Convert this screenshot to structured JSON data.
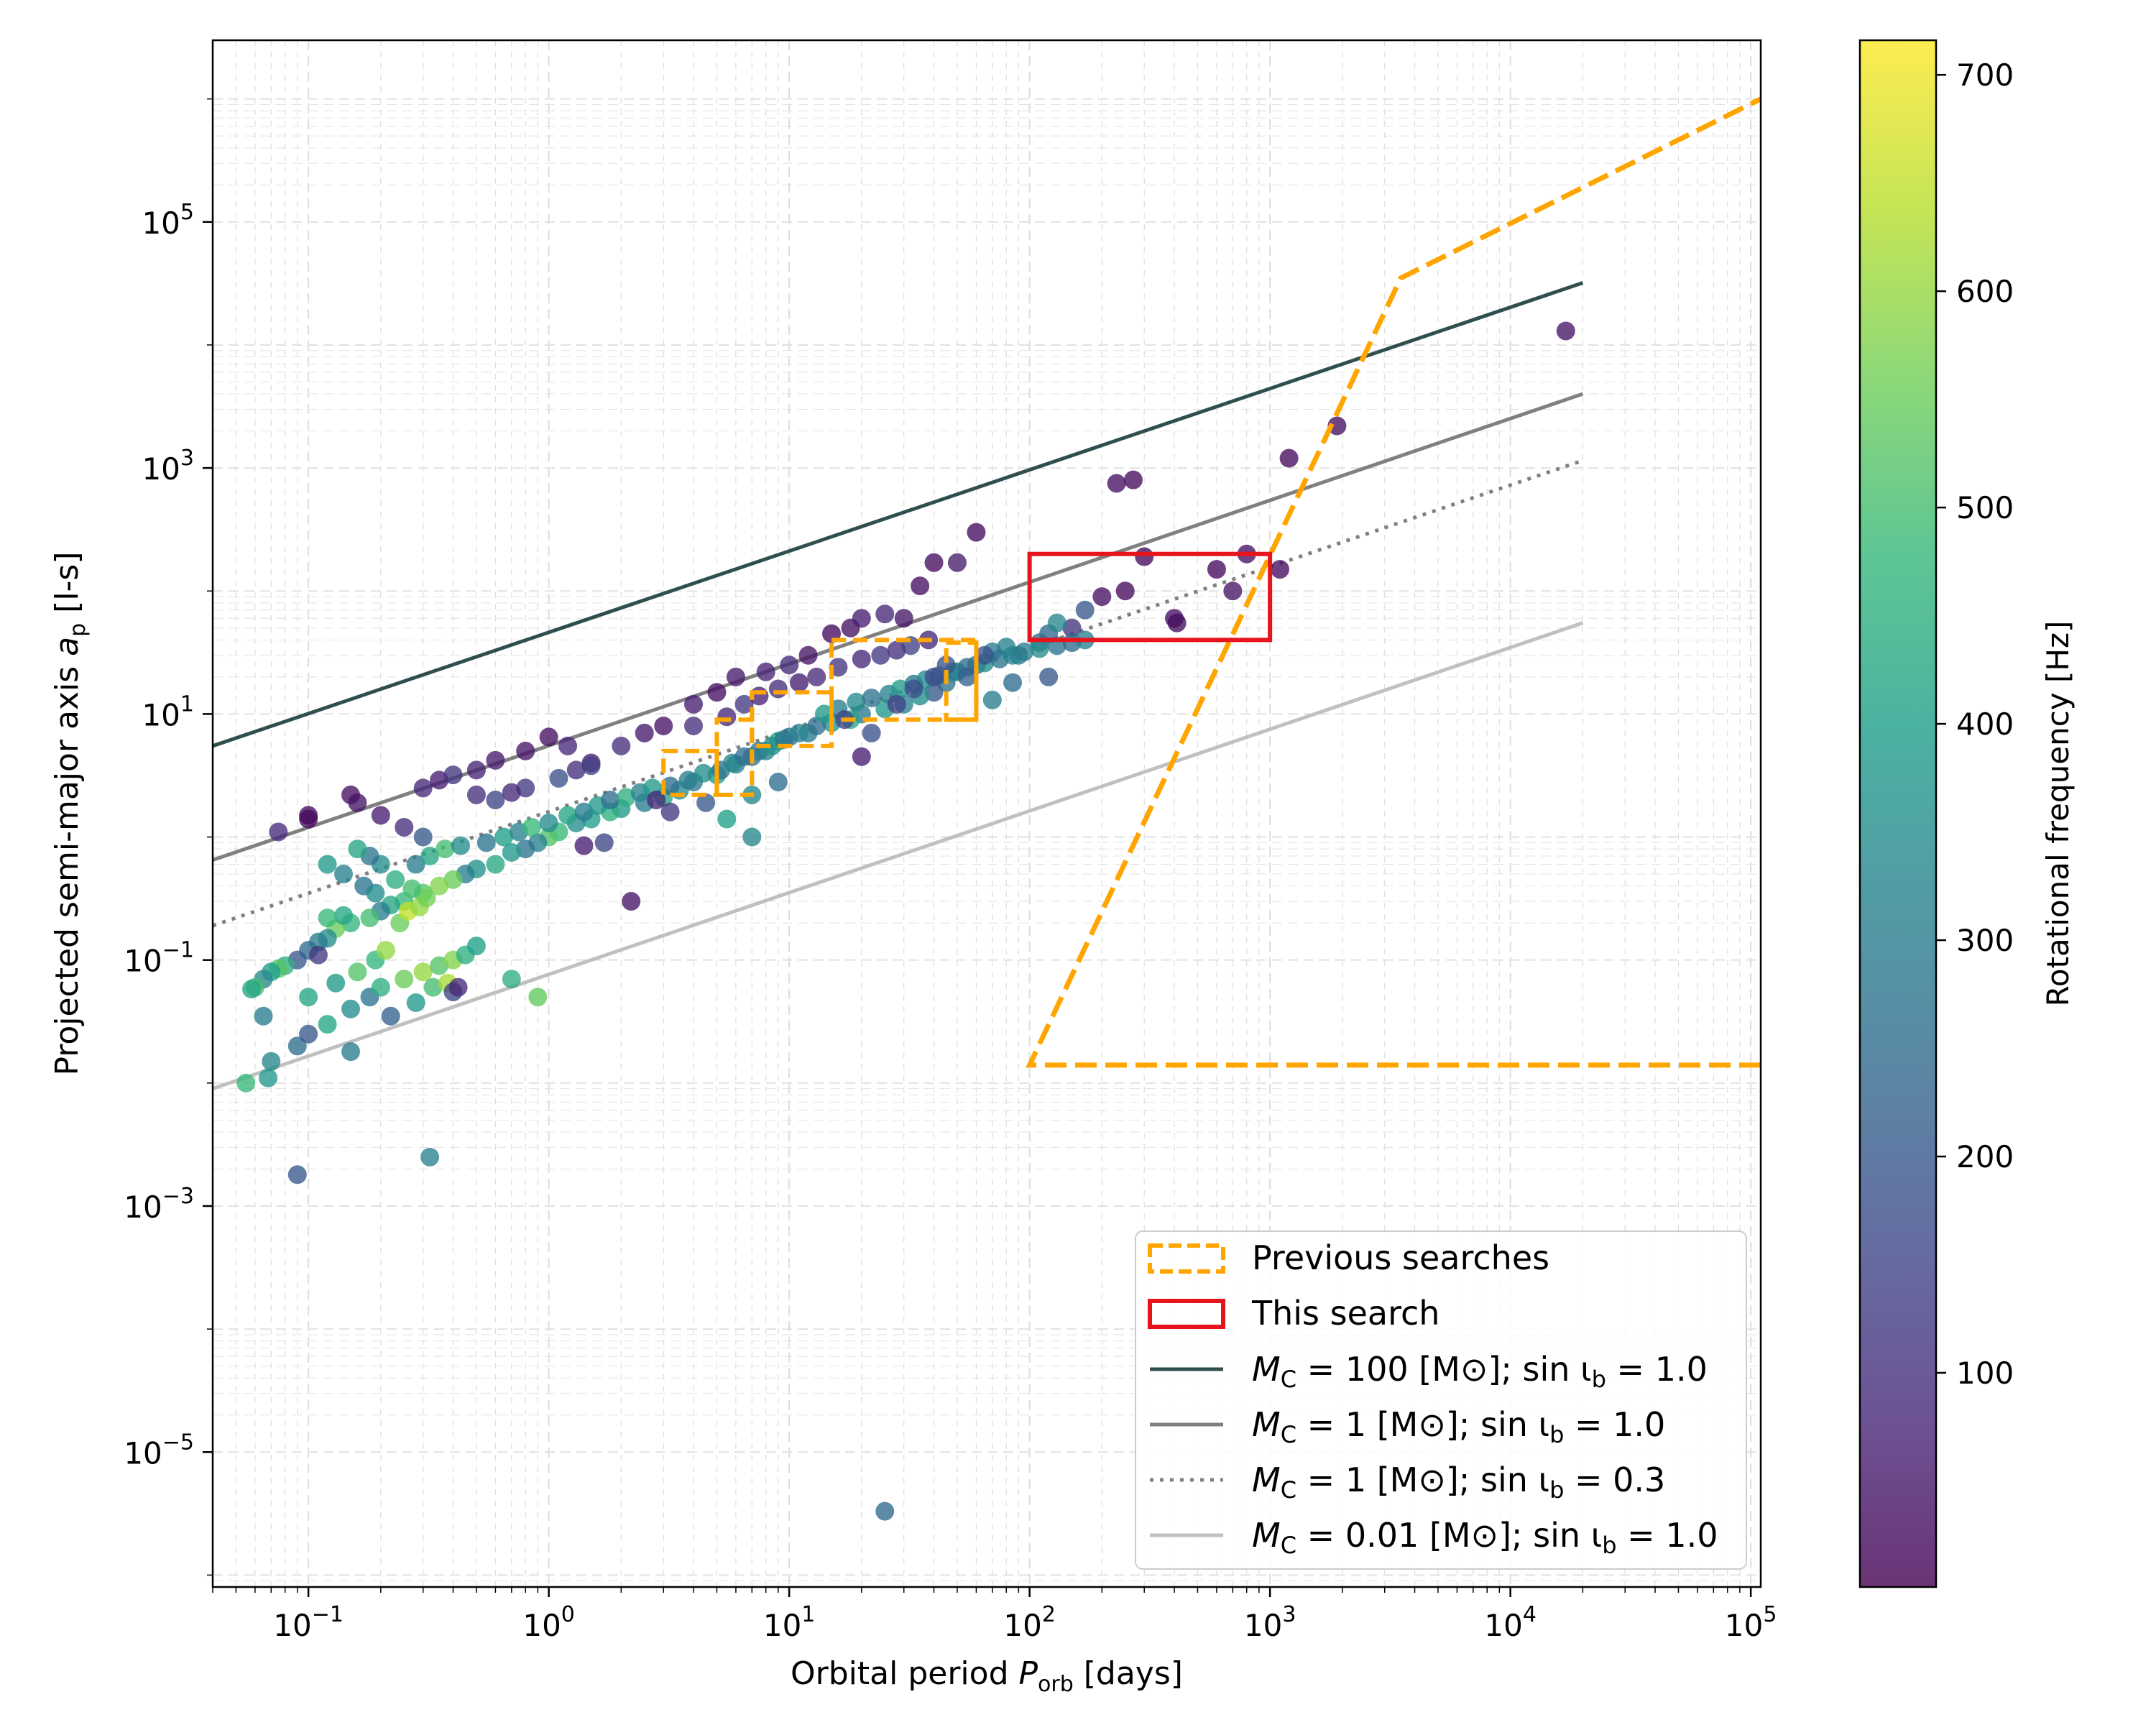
{
  "chart_data": {
    "type": "scatter",
    "x_scale": "log",
    "y_scale": "log",
    "xlabel_main": "Orbital period ",
    "xlabel_symbol": "P",
    "xlabel_sub": "orb",
    "xlabel_units": " [days]",
    "ylabel_main": "Projected semi-major axis ",
    "ylabel_symbol": "a",
    "ylabel_sub": "p",
    "ylabel_units": " [l-s]",
    "xlim": [
      0.04,
      110000
    ],
    "ylim": [
      8e-07,
      3000000
    ],
    "x_ticks": [
      {
        "base": "10",
        "exp": "−1",
        "value": 0.1
      },
      {
        "base": "10",
        "exp": "0",
        "value": 1
      },
      {
        "base": "10",
        "exp": "1",
        "value": 10
      },
      {
        "base": "10",
        "exp": "2",
        "value": 100
      },
      {
        "base": "10",
        "exp": "3",
        "value": 1000
      },
      {
        "base": "10",
        "exp": "4",
        "value": 10000
      },
      {
        "base": "10",
        "exp": "5",
        "value": 100000
      }
    ],
    "y_ticks": [
      {
        "base": "10",
        "exp": "−5",
        "value": 1e-05
      },
      {
        "base": "10",
        "exp": "−3",
        "value": 0.001
      },
      {
        "base": "10",
        "exp": "−1",
        "value": 0.1
      },
      {
        "base": "10",
        "exp": "1",
        "value": 10
      },
      {
        "base": "10",
        "exp": "3",
        "value": 1000
      },
      {
        "base": "10",
        "exp": "5",
        "value": 100000
      }
    ],
    "grid": true,
    "legend_position": "lower-right",
    "colorbar": {
      "label": "Rotational frequency [Hz]",
      "range": [
        1,
        716
      ],
      "ticks": [
        "100",
        "200",
        "300",
        "400",
        "500",
        "600",
        "700"
      ],
      "tick_values": [
        100,
        200,
        300,
        400,
        500,
        600,
        700
      ],
      "colormap": [
        "#440154",
        "#482878",
        "#3e4989",
        "#31688e",
        "#26828e",
        "#1f9e89",
        "#35b779",
        "#6ece58",
        "#b5de2b",
        "#fde725"
      ]
    },
    "lines": [
      {
        "name": "mc100",
        "x": [
          0.04,
          20000
        ],
        "y": [
          5.5,
          32000
        ],
        "color": "#2f4f4f",
        "dash": "solid"
      },
      {
        "name": "mc1",
        "x": [
          0.04,
          20000
        ],
        "y": [
          0.65,
          4000
        ],
        "color": "#808080",
        "dash": "solid"
      },
      {
        "name": "mc1-sin03",
        "x": [
          0.04,
          20000
        ],
        "y": [
          0.19,
          1150
        ],
        "color": "#808080",
        "dash": "dotted"
      },
      {
        "name": "mc001",
        "x": [
          0.04,
          20000
        ],
        "y": [
          0.009,
          55
        ],
        "color": "#c0c0c0",
        "dash": "solid"
      }
    ],
    "previous_searches": [
      {
        "x": [
          3,
          5
        ],
        "y": [
          2.2,
          5
        ]
      },
      {
        "x": [
          5,
          7
        ],
        "y": [
          2.2,
          9
        ]
      },
      {
        "x": [
          7,
          15
        ],
        "y": [
          5.5,
          15
        ]
      },
      {
        "x": [
          15,
          60
        ],
        "y": [
          9,
          40
        ]
      },
      {
        "x": [
          45,
          60
        ],
        "y": [
          9,
          38
        ]
      }
    ],
    "previous_searches_boundary": {
      "x": [
        110000,
        100,
        3500,
        110000
      ],
      "y": [
        0.014,
        0.014,
        35000,
        1000000
      ]
    },
    "this_search": {
      "x": [
        100,
        1000
      ],
      "y": [
        40,
        200
      ]
    },
    "legend": [
      {
        "label": "Previous searches",
        "kind": "box-dashed"
      },
      {
        "label": "This search",
        "kind": "box-solid"
      },
      {
        "label_prefix": "M",
        "label_sub": "C",
        "label_mid": " = 100 [M",
        "label_sym": "⊙",
        "label_end": "]; sin ι",
        "label_sub2": "b",
        "label_tail": " = 1.0",
        "kind": "line",
        "color": "#2f4f4f",
        "dash": "solid"
      },
      {
        "label_prefix": "M",
        "label_sub": "C",
        "label_mid": " = 1 [M",
        "label_sym": "⊙",
        "label_end": "]; sin ι",
        "label_sub2": "b",
        "label_tail": " = 1.0",
        "kind": "line",
        "color": "#808080",
        "dash": "solid"
      },
      {
        "label_prefix": "M",
        "label_sub": "C",
        "label_mid": " = 1 [M",
        "label_sym": "⊙",
        "label_end": "]; sin ι",
        "label_sub2": "b",
        "label_tail": " = 0.3",
        "kind": "line",
        "color": "#808080",
        "dash": "dotted"
      },
      {
        "label_prefix": "M",
        "label_sub": "C",
        "label_mid": " = 0.01 [M",
        "label_sym": "⊙",
        "label_end": "]; sin ι",
        "label_sub2": "b",
        "label_tail": " = 1.0",
        "kind": "line",
        "color": "#c0c0c0",
        "dash": "solid"
      }
    ],
    "points": [
      [
        0.075,
        1.1,
        90
      ],
      [
        0.1,
        1.4,
        20
      ],
      [
        0.1,
        1.5,
        15
      ],
      [
        0.15,
        2.2,
        30
      ],
      [
        0.16,
        1.9,
        40
      ],
      [
        0.2,
        1.5,
        60
      ],
      [
        0.25,
        1.2,
        100
      ],
      [
        0.3,
        2.5,
        80
      ],
      [
        0.35,
        2.9,
        60
      ],
      [
        0.4,
        3.2,
        110
      ],
      [
        0.5,
        3.5,
        70
      ],
      [
        0.6,
        4.2,
        50
      ],
      [
        0.8,
        5.0,
        40
      ],
      [
        1.0,
        6.5,
        30
      ],
      [
        1.2,
        5.5,
        80
      ],
      [
        1.5,
        4.0,
        60
      ],
      [
        2.0,
        5.5,
        100
      ],
      [
        2.5,
        7.0,
        50
      ],
      [
        3.0,
        8.0,
        40
      ],
      [
        4.0,
        12.0,
        60
      ],
      [
        5.0,
        15.0,
        30
      ],
      [
        6.0,
        20.0,
        50
      ],
      [
        8.0,
        22.0,
        70
      ],
      [
        10.0,
        25.0,
        90
      ],
      [
        12.0,
        30.0,
        40
      ],
      [
        15.0,
        45.0,
        20
      ],
      [
        18.0,
        50.0,
        35
      ],
      [
        20.0,
        60.0,
        60
      ],
      [
        25.0,
        65.0,
        80
      ],
      [
        30.0,
        60.0,
        45
      ],
      [
        35.0,
        110.0,
        30
      ],
      [
        40.0,
        170.0,
        25
      ],
      [
        50.0,
        170.0,
        55
      ],
      [
        60.0,
        300.0,
        25
      ],
      [
        230.0,
        750.0,
        30
      ],
      [
        270.0,
        800.0,
        25
      ],
      [
        1200.0,
        1200.0,
        20
      ],
      [
        1900.0,
        2200.0,
        30
      ],
      [
        17000.0,
        13000.0,
        40
      ],
      [
        300.0,
        190.0,
        25
      ],
      [
        200.0,
        90.0,
        35
      ],
      [
        250.0,
        100.0,
        20
      ],
      [
        400.0,
        60.0,
        30
      ],
      [
        410.0,
        55.0,
        25
      ],
      [
        600.0,
        150.0,
        20
      ],
      [
        800.0,
        200.0,
        30
      ],
      [
        1100.0,
        150.0,
        25
      ],
      [
        700.0,
        100.0,
        40
      ],
      [
        150.0,
        50.0,
        110
      ],
      [
        120.0,
        45.0,
        240
      ],
      [
        130.0,
        55.0,
        330
      ],
      [
        170.0,
        70.0,
        200
      ],
      [
        110.0,
        38.0,
        260
      ],
      [
        90.0,
        30.0,
        280
      ],
      [
        80.0,
        35.0,
        320
      ],
      [
        70.0,
        32.0,
        300
      ],
      [
        60.0,
        25.0,
        250
      ],
      [
        50.0,
        22.0,
        330
      ],
      [
        45.0,
        18.0,
        280
      ],
      [
        40.0,
        15.0,
        200
      ],
      [
        35.0,
        14.0,
        350
      ],
      [
        30.0,
        12.0,
        320
      ],
      [
        25.0,
        11.0,
        380
      ],
      [
        20.0,
        10.0,
        290
      ],
      [
        18.0,
        9.0,
        420
      ],
      [
        15.0,
        8.5,
        360
      ],
      [
        12.0,
        7.0,
        300
      ],
      [
        10.0,
        6.5,
        270
      ],
      [
        9.0,
        6.0,
        400
      ],
      [
        8.0,
        5.0,
        330
      ],
      [
        7.0,
        4.5,
        260
      ],
      [
        6.0,
        3.9,
        310
      ],
      [
        5.0,
        3.2,
        380
      ],
      [
        4.0,
        2.8,
        290
      ],
      [
        3.5,
        2.4,
        350
      ],
      [
        3.0,
        2.1,
        420
      ],
      [
        2.5,
        1.9,
        300
      ],
      [
        2.0,
        1.7,
        380
      ],
      [
        1.8,
        1.6,
        450
      ],
      [
        1.5,
        1.4,
        400
      ],
      [
        1.3,
        1.3,
        350
      ],
      [
        1.1,
        1.1,
        480
      ],
      [
        1.0,
        1.0,
        520
      ],
      [
        0.9,
        0.9,
        320
      ],
      [
        0.8,
        0.8,
        280
      ],
      [
        0.7,
        0.75,
        380
      ],
      [
        0.6,
        0.6,
        430
      ],
      [
        0.5,
        0.55,
        360
      ],
      [
        0.45,
        0.5,
        300
      ],
      [
        0.4,
        0.45,
        550
      ],
      [
        0.35,
        0.4,
        580
      ],
      [
        0.3,
        0.35,
        520
      ],
      [
        0.25,
        0.3,
        480
      ],
      [
        0.22,
        0.28,
        420
      ],
      [
        0.2,
        0.25,
        300
      ],
      [
        0.18,
        0.22,
        500
      ],
      [
        0.15,
        0.2,
        470
      ],
      [
        0.13,
        0.18,
        550
      ],
      [
        0.12,
        0.15,
        350
      ],
      [
        0.11,
        0.14,
        300
      ],
      [
        0.1,
        0.12,
        250
      ],
      [
        0.09,
        0.1,
        200
      ],
      [
        0.08,
        0.09,
        450
      ],
      [
        0.075,
        0.085,
        520
      ],
      [
        0.07,
        0.08,
        400
      ],
      [
        0.065,
        0.07,
        330
      ],
      [
        0.06,
        0.06,
        500
      ],
      [
        0.058,
        0.058,
        420
      ],
      [
        0.065,
        0.035,
        300
      ],
      [
        0.07,
        0.015,
        330
      ],
      [
        0.055,
        0.01,
        480
      ],
      [
        0.068,
        0.011,
        380
      ],
      [
        0.09,
        0.02,
        250
      ],
      [
        0.1,
        0.025,
        200
      ],
      [
        0.12,
        0.03,
        420
      ],
      [
        0.15,
        0.04,
        350
      ],
      [
        0.18,
        0.05,
        280
      ],
      [
        0.2,
        0.06,
        450
      ],
      [
        0.25,
        0.07,
        550
      ],
      [
        0.3,
        0.08,
        600
      ],
      [
        0.35,
        0.09,
        520
      ],
      [
        0.4,
        0.1,
        580
      ],
      [
        0.45,
        0.11,
        450
      ],
      [
        0.5,
        0.13,
        400
      ],
      [
        0.22,
        0.035,
        220
      ],
      [
        0.28,
        0.045,
        380
      ],
      [
        0.33,
        0.06,
        500
      ],
      [
        0.38,
        0.065,
        620
      ],
      [
        0.1,
        0.05,
        420
      ],
      [
        0.13,
        0.065,
        380
      ],
      [
        0.16,
        0.08,
        520
      ],
      [
        0.19,
        0.1,
        470
      ],
      [
        0.21,
        0.12,
        600
      ],
      [
        0.24,
        0.2,
        550
      ],
      [
        0.26,
        0.25,
        650
      ],
      [
        0.29,
        0.27,
        600
      ],
      [
        0.31,
        0.32,
        560
      ],
      [
        0.14,
        0.23,
        420
      ],
      [
        0.12,
        0.22,
        480
      ],
      [
        0.11,
        0.11,
        120
      ],
      [
        0.15,
        0.018,
        300
      ],
      [
        0.09,
        0.0018,
        200
      ],
      [
        0.32,
        0.0025,
        320
      ],
      [
        25.0,
        3.3e-06,
        240
      ],
      [
        0.7,
        0.07,
        450
      ],
      [
        0.9,
        0.05,
        540
      ],
      [
        0.4,
        0.055,
        150
      ],
      [
        0.42,
        0.06,
        80
      ],
      [
        0.28,
        0.6,
        300
      ],
      [
        0.32,
        0.7,
        420
      ],
      [
        0.37,
        0.8,
        500
      ],
      [
        0.43,
        0.85,
        350
      ],
      [
        0.55,
        0.9,
        280
      ],
      [
        0.65,
        1.0,
        400
      ],
      [
        0.75,
        1.1,
        320
      ],
      [
        0.85,
        1.2,
        480
      ],
      [
        1.0,
        1.3,
        350
      ],
      [
        1.2,
        1.5,
        420
      ],
      [
        1.4,
        1.6,
        300
      ],
      [
        1.6,
        1.8,
        380
      ],
      [
        1.8,
        2.0,
        260
      ],
      [
        2.1,
        2.1,
        450
      ],
      [
        2.4,
        2.3,
        320
      ],
      [
        2.7,
        2.5,
        380
      ],
      [
        3.2,
        2.6,
        260
      ],
      [
        3.8,
        2.9,
        300
      ],
      [
        4.4,
        3.3,
        350
      ],
      [
        5.2,
        3.5,
        280
      ],
      [
        5.8,
        4.0,
        330
      ],
      [
        6.5,
        4.5,
        260
      ],
      [
        7.5,
        5.0,
        300
      ],
      [
        8.5,
        5.5,
        360
      ],
      [
        9.5,
        6.2,
        280
      ],
      [
        11.0,
        7.0,
        320
      ],
      [
        13.0,
        8.0,
        260
      ],
      [
        14.0,
        10.0,
        380
      ],
      [
        16.0,
        11.0,
        300
      ],
      [
        19.0,
        12.5,
        350
      ],
      [
        22.0,
        13.5,
        270
      ],
      [
        26.0,
        14.5,
        320
      ],
      [
        29.0,
        16.0,
        380
      ],
      [
        33.0,
        17.5,
        290
      ],
      [
        37.0,
        19.0,
        340
      ],
      [
        42.0,
        20.5,
        260
      ],
      [
        48.0,
        22.0,
        310
      ],
      [
        55.0,
        24.0,
        250
      ],
      [
        65.0,
        26.0,
        350
      ],
      [
        75.0,
        28.0,
        280
      ],
      [
        85.0,
        30.0,
        320
      ],
      [
        95.0,
        32.0,
        300
      ],
      [
        110.0,
        34.0,
        350
      ],
      [
        130.0,
        36.0,
        280
      ],
      [
        150.0,
        38.0,
        250
      ],
      [
        170.0,
        40.0,
        320
      ],
      [
        5.5,
        1.4,
        400
      ],
      [
        7.0,
        2.2,
        330
      ],
      [
        9.0,
        2.8,
        260
      ],
      [
        3.2,
        1.6,
        120
      ],
      [
        4.5,
        1.9,
        200
      ],
      [
        2.8,
        2.0,
        80
      ],
      [
        1.7,
        0.9,
        150
      ],
      [
        1.4,
        0.85,
        60
      ],
      [
        2.2,
        0.3,
        40
      ],
      [
        0.12,
        0.6,
        380
      ],
      [
        0.14,
        0.5,
        320
      ],
      [
        0.17,
        0.4,
        280
      ],
      [
        0.19,
        0.35,
        350
      ],
      [
        0.23,
        0.45,
        450
      ],
      [
        0.27,
        0.38,
        500
      ],
      [
        0.3,
        1.0,
        200
      ],
      [
        0.2,
        0.6,
        350
      ],
      [
        0.18,
        0.7,
        280
      ],
      [
        0.16,
        0.8,
        420
      ],
      [
        0.6,
        2.0,
        150
      ],
      [
        0.8,
        2.5,
        120
      ],
      [
        0.5,
        2.2,
        100
      ],
      [
        0.7,
        2.3,
        80
      ],
      [
        1.3,
        3.5,
        100
      ],
      [
        1.1,
        3.0,
        180
      ],
      [
        1.5,
        3.8,
        140
      ],
      [
        4.0,
        8.0,
        100
      ],
      [
        5.5,
        9.5,
        80
      ],
      [
        6.5,
        12.0,
        120
      ],
      [
        7.5,
        14.0,
        70
      ],
      [
        9.0,
        16.0,
        100
      ],
      [
        11.0,
        18.0,
        60
      ],
      [
        13.0,
        20.0,
        90
      ],
      [
        16.0,
        24.0,
        110
      ],
      [
        20.0,
        28.0,
        80
      ],
      [
        24.0,
        30.0,
        120
      ],
      [
        28.0,
        33.0,
        100
      ],
      [
        32.0,
        36.0,
        140
      ],
      [
        38.0,
        40.0,
        80
      ],
      [
        20.0,
        4.5,
        60
      ],
      [
        17.0,
        9.0,
        150
      ],
      [
        22.0,
        7.0,
        180
      ],
      [
        28.0,
        12.0,
        140
      ],
      [
        33.0,
        16.0,
        170
      ],
      [
        40.0,
        20.0,
        160
      ],
      [
        45.0,
        25.0,
        190
      ],
      [
        55.0,
        20.0,
        220
      ],
      [
        65.0,
        30.0,
        180
      ],
      [
        70.0,
        13.0,
        300
      ],
      [
        85.0,
        18.0,
        250
      ],
      [
        120.0,
        20.0,
        200
      ],
      [
        7.0,
        1.0,
        330
      ]
    ]
  }
}
